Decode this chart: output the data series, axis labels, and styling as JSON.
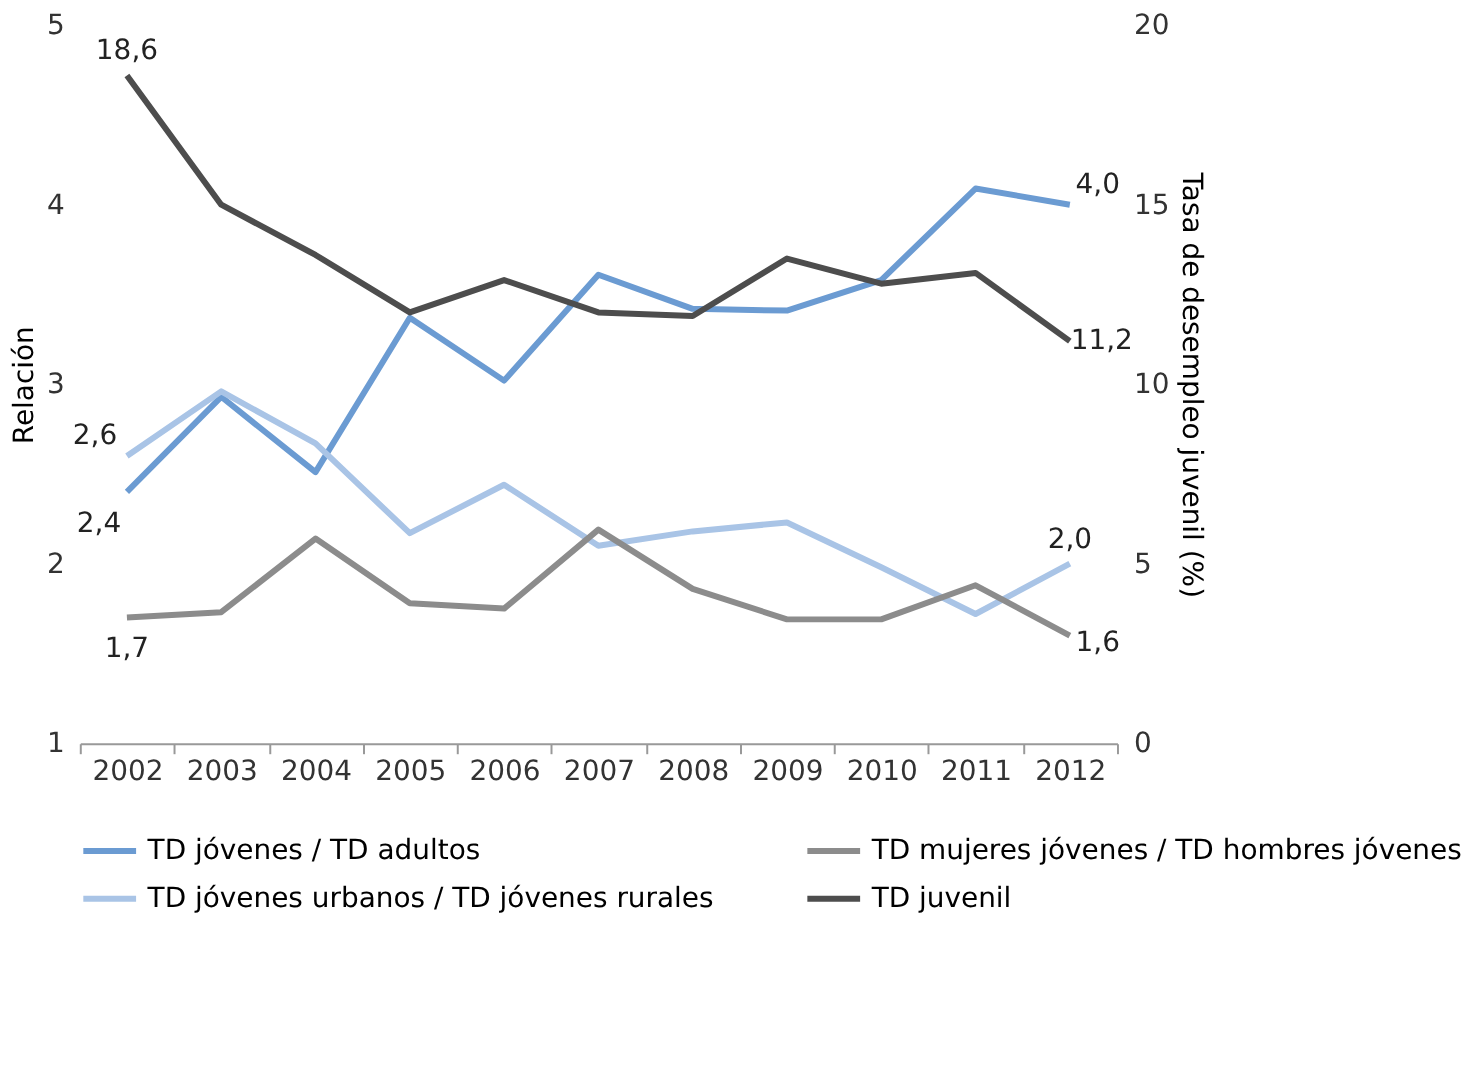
{
  "chart_data": {
    "type": "line",
    "ylabel": "Relación",
    "y2label": "Tasa de desempleo juvenil (%)",
    "categories": [
      "2002",
      "2003",
      "2004",
      "2005",
      "2006",
      "2007",
      "2008",
      "2009",
      "2010",
      "2011",
      "2012"
    ],
    "ylim": [
      1,
      5
    ],
    "yticks": [
      1,
      2,
      3,
      4,
      5
    ],
    "y2lim": [
      0,
      20
    ],
    "y2ticks": [
      0,
      5,
      10,
      15,
      20
    ],
    "grid": false,
    "legend": "bottom",
    "marker": "none",
    "line_style": "solid",
    "series": [
      {
        "name": "TD jóvenes / TD adultos",
        "color": "#6b9bd2",
        "values": [
          2.4,
          2.93,
          2.51,
          3.37,
          3.02,
          3.61,
          3.42,
          3.41,
          3.58,
          4.09,
          4.0
        ],
        "value_labels": [
          "2,4",
          null,
          null,
          null,
          null,
          null,
          null,
          null,
          null,
          null,
          "4,0"
        ]
      },
      {
        "name": "TD jóvenes urbanos / TD jóvenes rurales",
        "color": "#a9c4e6",
        "values": [
          2.6,
          2.96,
          2.67,
          2.17,
          2.44,
          2.1,
          2.18,
          2.23,
          1.98,
          1.72,
          2.0
        ],
        "value_labels": [
          "2,6",
          null,
          null,
          null,
          null,
          null,
          null,
          null,
          null,
          null,
          "2,0"
        ]
      },
      {
        "name": "TD mujeres jóvenes / TD hombres jóvenes",
        "color": "#8c8c8c",
        "values": [
          1.7,
          1.73,
          2.14,
          1.78,
          1.75,
          2.19,
          1.86,
          1.69,
          1.69,
          1.88,
          1.6
        ],
        "value_labels": [
          "1,7",
          null,
          null,
          null,
          null,
          null,
          null,
          null,
          null,
          null,
          "1,6"
        ]
      },
      {
        "name": "TD juvenil",
        "color": "#4d4d4d",
        "axis": "y2",
        "values": [
          18.6,
          15.0,
          13.6,
          12.0,
          12.9,
          12.0,
          11.9,
          13.5,
          12.8,
          13.1,
          11.2
        ],
        "value_labels": [
          "18,6",
          null,
          null,
          null,
          null,
          null,
          null,
          null,
          null,
          null,
          "11,2"
        ]
      }
    ]
  }
}
